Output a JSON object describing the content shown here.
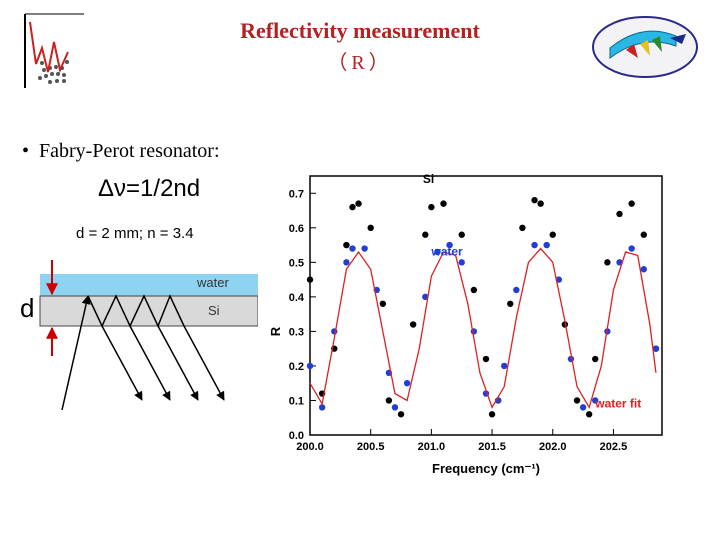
{
  "slide": {
    "title": "Reflectivity measurement",
    "subtitle": "（R）",
    "bullet": "Fabry-Perot resonator:",
    "formula": "Δν=1/2nd",
    "params": "d = 2 mm; n = 3.4"
  },
  "diagram": {
    "d_label": "d",
    "water_label": "water",
    "si_label": "Si",
    "colors": {
      "water": "#8fd3f3",
      "si": "#d9d9d9",
      "arrow_red": "#cc0000"
    }
  },
  "chart_data": {
    "type": "scatter",
    "title": "",
    "xlabel": "Frequency (cm⁻¹)",
    "ylabel": "R",
    "xlim": [
      200.0,
      202.9
    ],
    "ylim": [
      0.0,
      0.75
    ],
    "xticks": [
      200.0,
      200.5,
      201.0,
      201.5,
      202.0,
      202.5
    ],
    "yticks": [
      0.0,
      0.1,
      0.2,
      0.3,
      0.4,
      0.5,
      0.6,
      0.7
    ],
    "legend": "inline labels",
    "series": [
      {
        "name": "Si",
        "color": "#000000",
        "marker": "circle",
        "x": [
          200.0,
          200.1,
          200.2,
          200.3,
          200.35,
          200.4,
          200.5,
          200.6,
          200.65,
          200.75,
          200.85,
          200.95,
          201.0,
          201.1,
          201.25,
          201.35,
          201.45,
          201.5,
          201.55,
          201.65,
          201.75,
          201.85,
          201.9,
          202.0,
          202.1,
          202.2,
          202.3,
          202.35,
          202.45,
          202.55,
          202.65,
          202.75,
          202.85
        ],
        "y": [
          0.45,
          0.12,
          0.25,
          0.55,
          0.66,
          0.67,
          0.6,
          0.38,
          0.1,
          0.06,
          0.32,
          0.58,
          0.66,
          0.67,
          0.58,
          0.42,
          0.22,
          0.06,
          0.1,
          0.38,
          0.6,
          0.68,
          0.67,
          0.58,
          0.32,
          0.1,
          0.06,
          0.22,
          0.5,
          0.64,
          0.67,
          0.58,
          0.25
        ]
      },
      {
        "name": "water",
        "color": "#1f3fd8",
        "marker": "circle",
        "x": [
          200.0,
          200.1,
          200.2,
          200.3,
          200.35,
          200.45,
          200.55,
          200.65,
          200.7,
          200.8,
          200.95,
          201.05,
          201.15,
          201.25,
          201.35,
          201.45,
          201.55,
          201.6,
          201.7,
          201.85,
          201.95,
          202.05,
          202.15,
          202.25,
          202.35,
          202.45,
          202.55,
          202.65,
          202.75,
          202.85
        ],
        "y": [
          0.2,
          0.08,
          0.3,
          0.5,
          0.54,
          0.54,
          0.42,
          0.18,
          0.08,
          0.15,
          0.4,
          0.53,
          0.55,
          0.5,
          0.3,
          0.12,
          0.1,
          0.2,
          0.42,
          0.55,
          0.55,
          0.45,
          0.22,
          0.08,
          0.1,
          0.3,
          0.5,
          0.54,
          0.48,
          0.25
        ]
      },
      {
        "name": "water fit",
        "color": "#e02020",
        "marker": "line",
        "x": [
          200.0,
          200.1,
          200.2,
          200.3,
          200.4,
          200.5,
          200.6,
          200.7,
          200.8,
          200.9,
          201.0,
          201.1,
          201.2,
          201.3,
          201.4,
          201.5,
          201.6,
          201.7,
          201.8,
          201.9,
          202.0,
          202.1,
          202.2,
          202.3,
          202.4,
          202.5,
          202.6,
          202.7,
          202.8,
          202.85
        ],
        "y": [
          0.15,
          0.09,
          0.28,
          0.48,
          0.53,
          0.48,
          0.3,
          0.12,
          0.1,
          0.25,
          0.46,
          0.53,
          0.52,
          0.38,
          0.18,
          0.08,
          0.14,
          0.34,
          0.5,
          0.54,
          0.5,
          0.33,
          0.14,
          0.08,
          0.2,
          0.42,
          0.53,
          0.52,
          0.32,
          0.18
        ]
      }
    ],
    "annotations": [
      {
        "text": "Si",
        "color": "#000000",
        "x": 200.93,
        "y": 0.73
      },
      {
        "text": "water",
        "color": "#1f3fd8",
        "x": 201.0,
        "y": 0.52
      },
      {
        "text": "water fit",
        "color": "#e02020",
        "x": 202.35,
        "y": 0.08
      }
    ]
  }
}
